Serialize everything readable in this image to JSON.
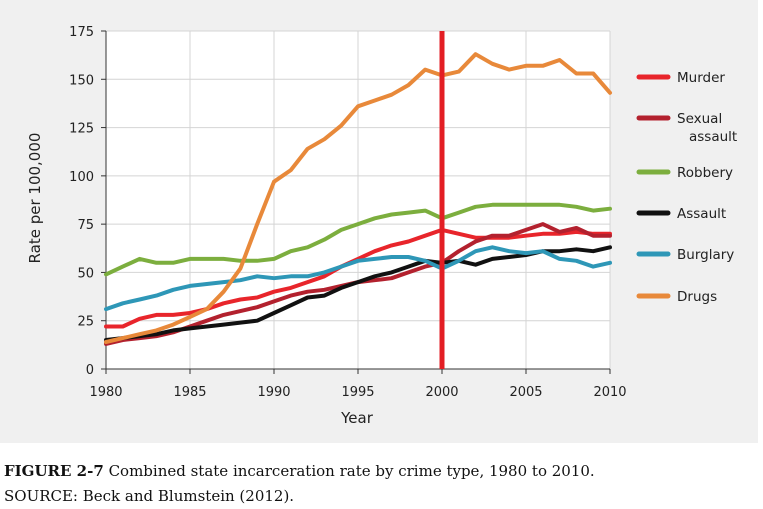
{
  "chart_data": {
    "type": "line",
    "title": "",
    "xlabel": "Year",
    "ylabel": "Rate per 100,000",
    "xlim": [
      1980,
      2010
    ],
    "ylim": [
      0,
      175
    ],
    "x_ticks": [
      1980,
      1985,
      1990,
      1995,
      2000,
      2005,
      2010
    ],
    "y_ticks": [
      0,
      25,
      50,
      75,
      100,
      125,
      150,
      175
    ],
    "grid": true,
    "legend_position": "right",
    "reference_line": {
      "x": 2000,
      "color": "#e31e24"
    },
    "x": [
      1980,
      1981,
      1982,
      1983,
      1984,
      1985,
      1986,
      1987,
      1988,
      1989,
      1990,
      1991,
      1992,
      1993,
      1994,
      1995,
      1996,
      1997,
      1998,
      1999,
      2000,
      2001,
      2002,
      2003,
      2004,
      2005,
      2006,
      2007,
      2008,
      2009,
      2010
    ],
    "series": [
      {
        "name": "Murder",
        "label_lines": [
          "Murder"
        ],
        "color": "#e8252b",
        "values": [
          22,
          22,
          26,
          28,
          28,
          29,
          31,
          34,
          36,
          37,
          40,
          42,
          45,
          48,
          53,
          57,
          61,
          64,
          66,
          69,
          72,
          70,
          68,
          68,
          68,
          69,
          70,
          70,
          71,
          70,
          70
        ]
      },
      {
        "name": "Sexual assault",
        "label_lines": [
          "Sexual",
          "assault"
        ],
        "color": "#b3212e",
        "values": [
          13,
          15,
          16,
          17,
          19,
          22,
          25,
          28,
          30,
          32,
          35,
          38,
          40,
          41,
          43,
          45,
          46,
          47,
          50,
          53,
          55,
          61,
          66,
          69,
          69,
          72,
          75,
          71,
          73,
          69,
          69
        ]
      },
      {
        "name": "Robbery",
        "label_lines": [
          "Robbery"
        ],
        "color": "#7cae3e",
        "values": [
          49,
          53,
          57,
          55,
          55,
          57,
          57,
          57,
          56,
          56,
          57,
          61,
          63,
          67,
          72,
          75,
          78,
          80,
          81,
          82,
          78,
          81,
          84,
          85,
          85,
          85,
          85,
          85,
          84,
          82,
          83
        ]
      },
      {
        "name": "Assault",
        "label_lines": [
          "Assault"
        ],
        "color": "#111111",
        "values": [
          15,
          16,
          17,
          18,
          20,
          21,
          22,
          23,
          24,
          25,
          29,
          33,
          37,
          38,
          42,
          45,
          48,
          50,
          53,
          56,
          55,
          56,
          54,
          57,
          58,
          59,
          61,
          61,
          62,
          61,
          63
        ]
      },
      {
        "name": "Burglary",
        "label_lines": [
          "Burglary"
        ],
        "color": "#2e97b7",
        "values": [
          31,
          34,
          36,
          38,
          41,
          43,
          44,
          45,
          46,
          48,
          47,
          48,
          48,
          50,
          53,
          56,
          57,
          58,
          58,
          56,
          52,
          56,
          61,
          63,
          61,
          60,
          61,
          57,
          56,
          53,
          55
        ]
      },
      {
        "name": "Drugs",
        "label_lines": [
          "Drugs"
        ],
        "color": "#e8893a",
        "values": [
          14,
          16,
          18,
          20,
          23,
          27,
          31,
          40,
          52,
          75,
          97,
          103,
          114,
          119,
          126,
          136,
          139,
          142,
          147,
          155,
          152,
          154,
          163,
          158,
          155,
          157,
          157,
          160,
          153,
          153,
          143
        ]
      }
    ]
  },
  "caption": {
    "figure_label": "FIGURE 2-7",
    "text": "Combined state incarceration rate by crime type, 1980 to 2010.",
    "source": "SOURCE: Beck and Blumstein (2012)."
  }
}
